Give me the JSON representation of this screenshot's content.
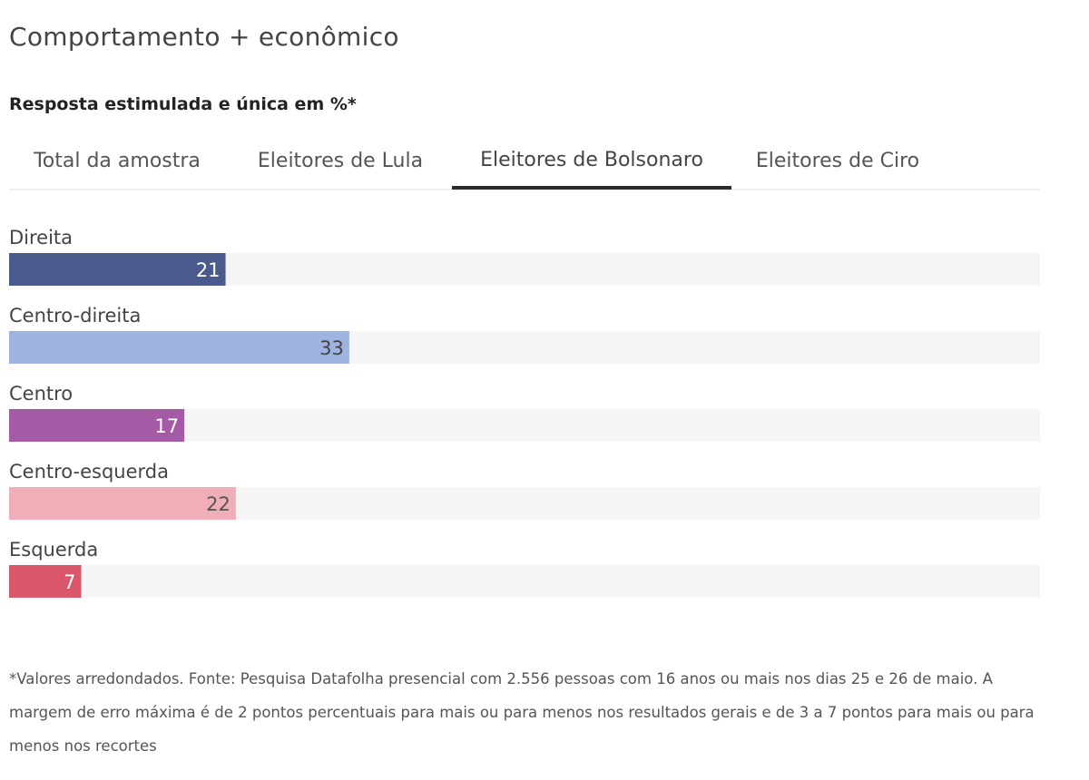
{
  "header": {
    "title": "Comportamento + econômico",
    "subtitle": "Resposta estimulada e única em %*"
  },
  "tabs": [
    {
      "label": "Total da amostra",
      "active": false
    },
    {
      "label": "Eleitores de Lula",
      "active": false
    },
    {
      "label": "Eleitores de Bolsonaro",
      "active": true
    },
    {
      "label": "Eleitores de Ciro",
      "active": false
    }
  ],
  "chart_data": {
    "type": "bar",
    "orientation": "horizontal",
    "categories": [
      "Direita",
      "Centro-direita",
      "Centro",
      "Centro-esquerda",
      "Esquerda"
    ],
    "values": [
      21,
      33,
      17,
      22,
      7
    ],
    "colors": [
      "#4a5a8c",
      "#9fb3e0",
      "#a55aa6",
      "#f0aeb8",
      "#d9566b"
    ],
    "label_colors": [
      "#ffffff",
      "#444444",
      "#ffffff",
      "#555555",
      "#ffffff"
    ],
    "track_color": "#f5f5f5",
    "xlim": [
      0,
      100
    ],
    "grid": false
  },
  "footnote": "*Valores arredondados. Fonte: Pesquisa Datafolha presencial com 2.556 pessoas com 16 anos ou mais nos dias 25 e 26 de maio. A margem de erro máxima é de 2 pontos percentuais para mais ou para menos nos resultados gerais e de 3 a 7 pontos para mais ou para menos nos recortes"
}
